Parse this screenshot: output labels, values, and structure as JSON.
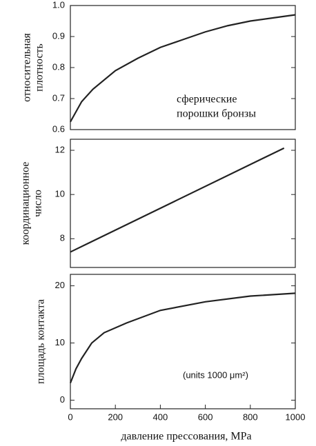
{
  "chart_data": [
    {
      "type": "line",
      "ylabel": [
        "относительная",
        "плотность"
      ],
      "annotation": [
        "сферические",
        "порошки бронзы"
      ],
      "x": [
        0,
        50,
        100,
        200,
        300,
        400,
        500,
        600,
        700,
        800,
        900,
        1000
      ],
      "series": [
        {
          "color": "#222222",
          "values": [
            0.625,
            0.69,
            0.73,
            0.79,
            0.83,
            0.865,
            0.89,
            0.915,
            0.935,
            0.95,
            0.96,
            0.97
          ]
        }
      ],
      "xlim": [
        0,
        1000
      ],
      "ylim": [
        0.6,
        1.0
      ],
      "yticks": [
        0.6,
        0.7,
        0.8,
        0.9,
        {
          "value": 1,
          "label": "1.0"
        }
      ]
    },
    {
      "type": "line",
      "ylabel": [
        "координационное",
        "число"
      ],
      "x": [
        0,
        950
      ],
      "series": [
        {
          "color": "#222222",
          "values": [
            7.4,
            12.1
          ]
        }
      ],
      "xlim": [
        0,
        1000
      ],
      "ylim": [
        6.7,
        12.5
      ],
      "yticks": [
        8,
        10,
        12
      ]
    },
    {
      "type": "line",
      "ylabel": [
        "площадь контакта"
      ],
      "annotation": [
        "(units 1000 μm²)"
      ],
      "xlabel": "давление прессования, MPa",
      "x": [
        0,
        25,
        50,
        95,
        150,
        250,
        400,
        600,
        800,
        1000
      ],
      "series": [
        {
          "color": "#222222",
          "values": [
            3,
            5.5,
            7.3,
            10,
            11.8,
            13.5,
            15.7,
            17.2,
            18.2,
            18.7
          ]
        }
      ],
      "xlim": [
        0,
        1000
      ],
      "ylim": [
        -1.5,
        22
      ],
      "yticks": [
        0,
        10,
        20
      ],
      "xticks": [
        0,
        200,
        400,
        600,
        800,
        1000
      ]
    }
  ]
}
